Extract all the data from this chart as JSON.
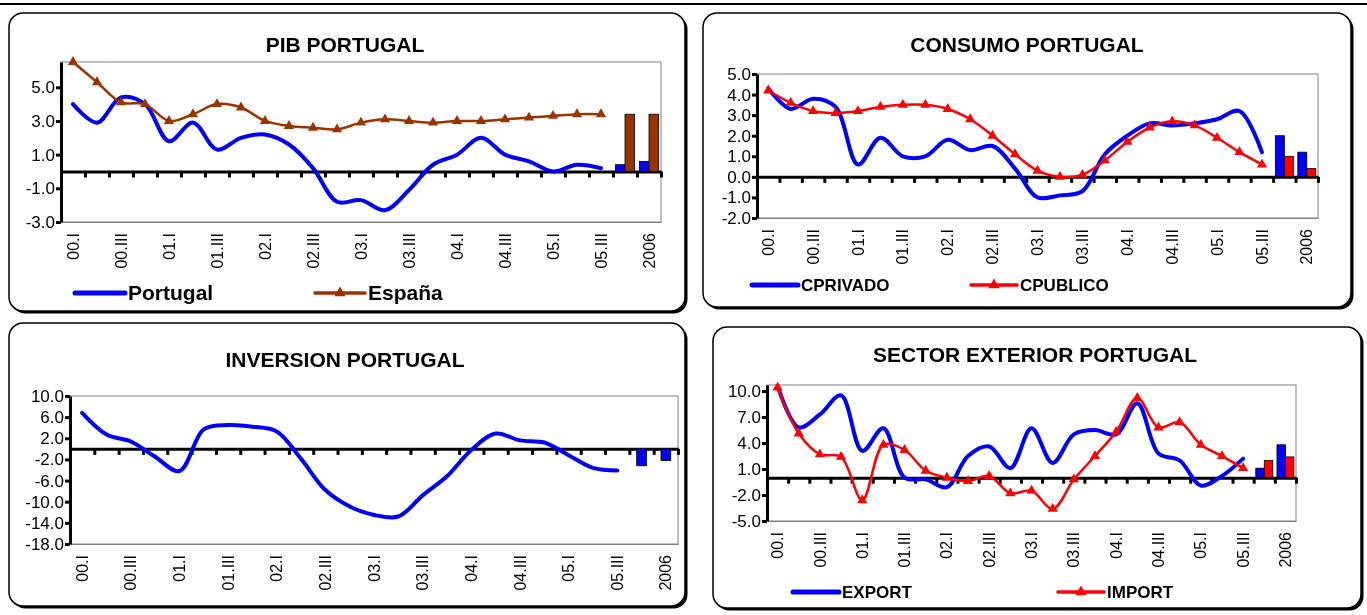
{
  "chart_data": [
    {
      "type": "line",
      "title": "PIB PORTUGAL",
      "categories": [
        "00.I",
        null,
        "00.III",
        null,
        "01.I",
        null,
        "01.III",
        null,
        "02.I",
        null,
        "02.III",
        null,
        "03.I",
        null,
        "03.III",
        null,
        "04.I",
        null,
        "04.III",
        null,
        "05.I",
        null,
        "05.III",
        null,
        "2006"
      ],
      "series": [
        {
          "name": "Portugal",
          "color": "#0000ff",
          "values": [
            4.0,
            2.9,
            4.4,
            4.0,
            1.8,
            2.9,
            1.3,
            2.0,
            2.2,
            1.6,
            0.2,
            -1.8,
            -1.7,
            -2.3,
            -1.1,
            0.4,
            1.0,
            2.0,
            1.0,
            0.6,
            0.0,
            0.4,
            0.2,
            null,
            null
          ]
        },
        {
          "name": "España",
          "color": "#993300",
          "marker": "triangle",
          "values": [
            6.5,
            5.3,
            4.1,
            4.0,
            3.0,
            3.4,
            4.0,
            3.8,
            3.0,
            2.7,
            2.6,
            2.5,
            2.9,
            3.1,
            3.0,
            2.9,
            3.0,
            3.0,
            3.1,
            3.2,
            3.3,
            3.4,
            3.4,
            null,
            null
          ]
        },
        {
          "type": "bar",
          "color": "#0000ff",
          "values": [
            null,
            null,
            null,
            null,
            null,
            null,
            null,
            null,
            null,
            null,
            null,
            null,
            null,
            null,
            null,
            null,
            null,
            null,
            null,
            null,
            null,
            null,
            null,
            0.4,
            0.6
          ]
        },
        {
          "type": "bar",
          "color": "#993300",
          "values": [
            null,
            null,
            null,
            null,
            null,
            null,
            null,
            null,
            null,
            null,
            null,
            null,
            null,
            null,
            null,
            null,
            null,
            null,
            null,
            null,
            null,
            null,
            null,
            3.4,
            3.4
          ]
        }
      ],
      "ylim": [
        -3,
        6.5
      ],
      "yticks": [
        {
          "value": -3,
          "label": "-3.0"
        },
        {
          "value": -1,
          "label": "-1.0"
        },
        {
          "value": 1,
          "label": "1.0"
        },
        {
          "value": 3,
          "label": "3.0"
        },
        {
          "value": 5,
          "label": "5.0"
        }
      ],
      "legend": "bottom"
    },
    {
      "type": "line",
      "title": "CONSUMO PORTUGAL",
      "categories": [
        "00.I",
        null,
        "00.III",
        null,
        "01.I",
        null,
        "01.III",
        null,
        "02.I",
        null,
        "02.III",
        null,
        "03.I",
        null,
        "03.III",
        null,
        "04.I",
        null,
        "04.III",
        null,
        "05.I",
        null,
        "05.III",
        null,
        "2006"
      ],
      "series": [
        {
          "name": "CPRIVADO",
          "color": "#0000ff",
          "values": [
            4.3,
            3.3,
            3.8,
            3.4,
            0.6,
            1.9,
            1.0,
            1.0,
            1.8,
            1.3,
            1.5,
            0.4,
            -1.0,
            -0.9,
            -0.7,
            1.1,
            2.0,
            2.6,
            2.5,
            2.6,
            2.8,
            3.2,
            1.2,
            null,
            null
          ]
        },
        {
          "name": "CPUBLICO",
          "color": "#ff0000",
          "marker": "triangle",
          "values": [
            4.2,
            3.6,
            3.2,
            3.1,
            3.2,
            3.4,
            3.5,
            3.5,
            3.3,
            2.8,
            2.0,
            1.1,
            0.3,
            0.0,
            0.1,
            0.8,
            1.7,
            2.4,
            2.7,
            2.5,
            1.9,
            1.2,
            0.6,
            null,
            null
          ]
        },
        {
          "type": "bar",
          "color": "#0000ff",
          "values": [
            null,
            null,
            null,
            null,
            null,
            null,
            null,
            null,
            null,
            null,
            null,
            null,
            null,
            null,
            null,
            null,
            null,
            null,
            null,
            null,
            null,
            null,
            null,
            2.0,
            1.2
          ]
        },
        {
          "type": "bar",
          "color": "#ff0000",
          "values": [
            null,
            null,
            null,
            null,
            null,
            null,
            null,
            null,
            null,
            null,
            null,
            null,
            null,
            null,
            null,
            null,
            null,
            null,
            null,
            null,
            null,
            null,
            null,
            1.0,
            0.4
          ]
        }
      ],
      "ylim": [
        -2,
        5
      ],
      "yticks": [
        {
          "value": -2,
          "label": "-2.0"
        },
        {
          "value": -1,
          "label": "-1.0"
        },
        {
          "value": 0,
          "label": "0.0"
        },
        {
          "value": 1,
          "label": "1.0"
        },
        {
          "value": 2,
          "label": "2.0"
        },
        {
          "value": 3,
          "label": "3.0"
        },
        {
          "value": 4,
          "label": "4.0"
        },
        {
          "value": 5,
          "label": "5.0"
        }
      ],
      "legend": "bottom"
    },
    {
      "type": "line",
      "title": "INVERSION PORTUGAL",
      "categories": [
        "00.I",
        null,
        "00.III",
        null,
        "01.I",
        null,
        "01.III",
        null,
        "02.I",
        null,
        "02.III",
        null,
        "03.I",
        null,
        "03.III",
        null,
        "04.I",
        null,
        "04.III",
        null,
        "05.I",
        null,
        "05.III",
        null,
        "2006"
      ],
      "series": [
        {
          "color": "#0000ff",
          "values": [
            6.8,
            2.7,
            1.4,
            -1.5,
            -4.2,
            3.7,
            4.5,
            4.2,
            3.3,
            -1.9,
            -7.8,
            -10.9,
            -12.5,
            -12.8,
            -8.8,
            -5.2,
            -0.2,
            2.9,
            1.6,
            1.2,
            -1.2,
            -3.6,
            -4.1,
            null,
            null
          ]
        },
        {
          "type": "bar",
          "color": "#0000ff",
          "values": [
            null,
            null,
            null,
            null,
            null,
            null,
            null,
            null,
            null,
            null,
            null,
            null,
            null,
            null,
            null,
            null,
            null,
            null,
            null,
            null,
            null,
            null,
            null,
            -3.2,
            -2.2
          ]
        }
      ],
      "ylim": [
        -18,
        10
      ],
      "yticks": [
        {
          "value": -18,
          "label": "-18.0"
        },
        {
          "value": -14,
          "label": "-14.0"
        },
        {
          "value": -10,
          "label": "-10.0"
        },
        {
          "value": -6,
          "label": "-6.0"
        },
        {
          "value": -2,
          "label": "-2.0"
        },
        {
          "value": 2,
          "label": "2.0"
        },
        {
          "value": 6,
          "label": "6.0"
        },
        {
          "value": 10,
          "label": "10.0"
        }
      ]
    },
    {
      "type": "line",
      "title": "SECTOR EXTERIOR PORTUGAL",
      "categories": [
        "00.I",
        null,
        "00.III",
        null,
        "01.I",
        null,
        "01.III",
        null,
        "02.I",
        null,
        "02.III",
        null,
        "03.I",
        null,
        "03.III",
        null,
        "04.I",
        null,
        "04.III",
        null,
        "05.I",
        null,
        "05.III",
        null,
        "2006"
      ],
      "series": [
        {
          "name": "EXPORT",
          "color": "#0000ff",
          "values": [
            10.6,
            5.8,
            7.3,
            9.5,
            3.1,
            5.7,
            0.0,
            -0.2,
            -1.1,
            2.5,
            3.6,
            1.1,
            5.7,
            1.7,
            5.0,
            5.5,
            5.0,
            8.6,
            2.8,
            2.0,
            -0.9,
            0.2,
            2.2,
            null,
            null
          ]
        },
        {
          "name": "IMPORT",
          "color": "#ff0000",
          "marker": "triangle",
          "values": [
            10.4,
            5.1,
            2.7,
            2.4,
            -2.6,
            3.8,
            3.2,
            0.8,
            0.0,
            -0.4,
            0.2,
            -1.8,
            -1.5,
            -3.6,
            -0.2,
            2.5,
            5.3,
            9.2,
            5.8,
            6.4,
            3.8,
            2.5,
            1.1,
            null,
            null
          ]
        },
        {
          "type": "bar",
          "color": "#0000ff",
          "values": [
            null,
            null,
            null,
            null,
            null,
            null,
            null,
            null,
            null,
            null,
            null,
            null,
            null,
            null,
            null,
            null,
            null,
            null,
            null,
            null,
            null,
            null,
            null,
            1.1,
            3.8
          ]
        },
        {
          "type": "bar",
          "color": "#ff0000",
          "values": [
            null,
            null,
            null,
            null,
            null,
            null,
            null,
            null,
            null,
            null,
            null,
            null,
            null,
            null,
            null,
            null,
            null,
            null,
            null,
            null,
            null,
            null,
            null,
            2.0,
            2.4
          ]
        }
      ],
      "ylim": [
        -5,
        10.7
      ],
      "yticks": [
        {
          "value": -5,
          "label": "-5.0"
        },
        {
          "value": -2,
          "label": "-2.0"
        },
        {
          "value": 1,
          "label": "1.0"
        },
        {
          "value": 4,
          "label": "4.0"
        },
        {
          "value": 7,
          "label": "7.0"
        },
        {
          "value": 10,
          "label": "10.0"
        }
      ],
      "legend": "bottom"
    }
  ]
}
